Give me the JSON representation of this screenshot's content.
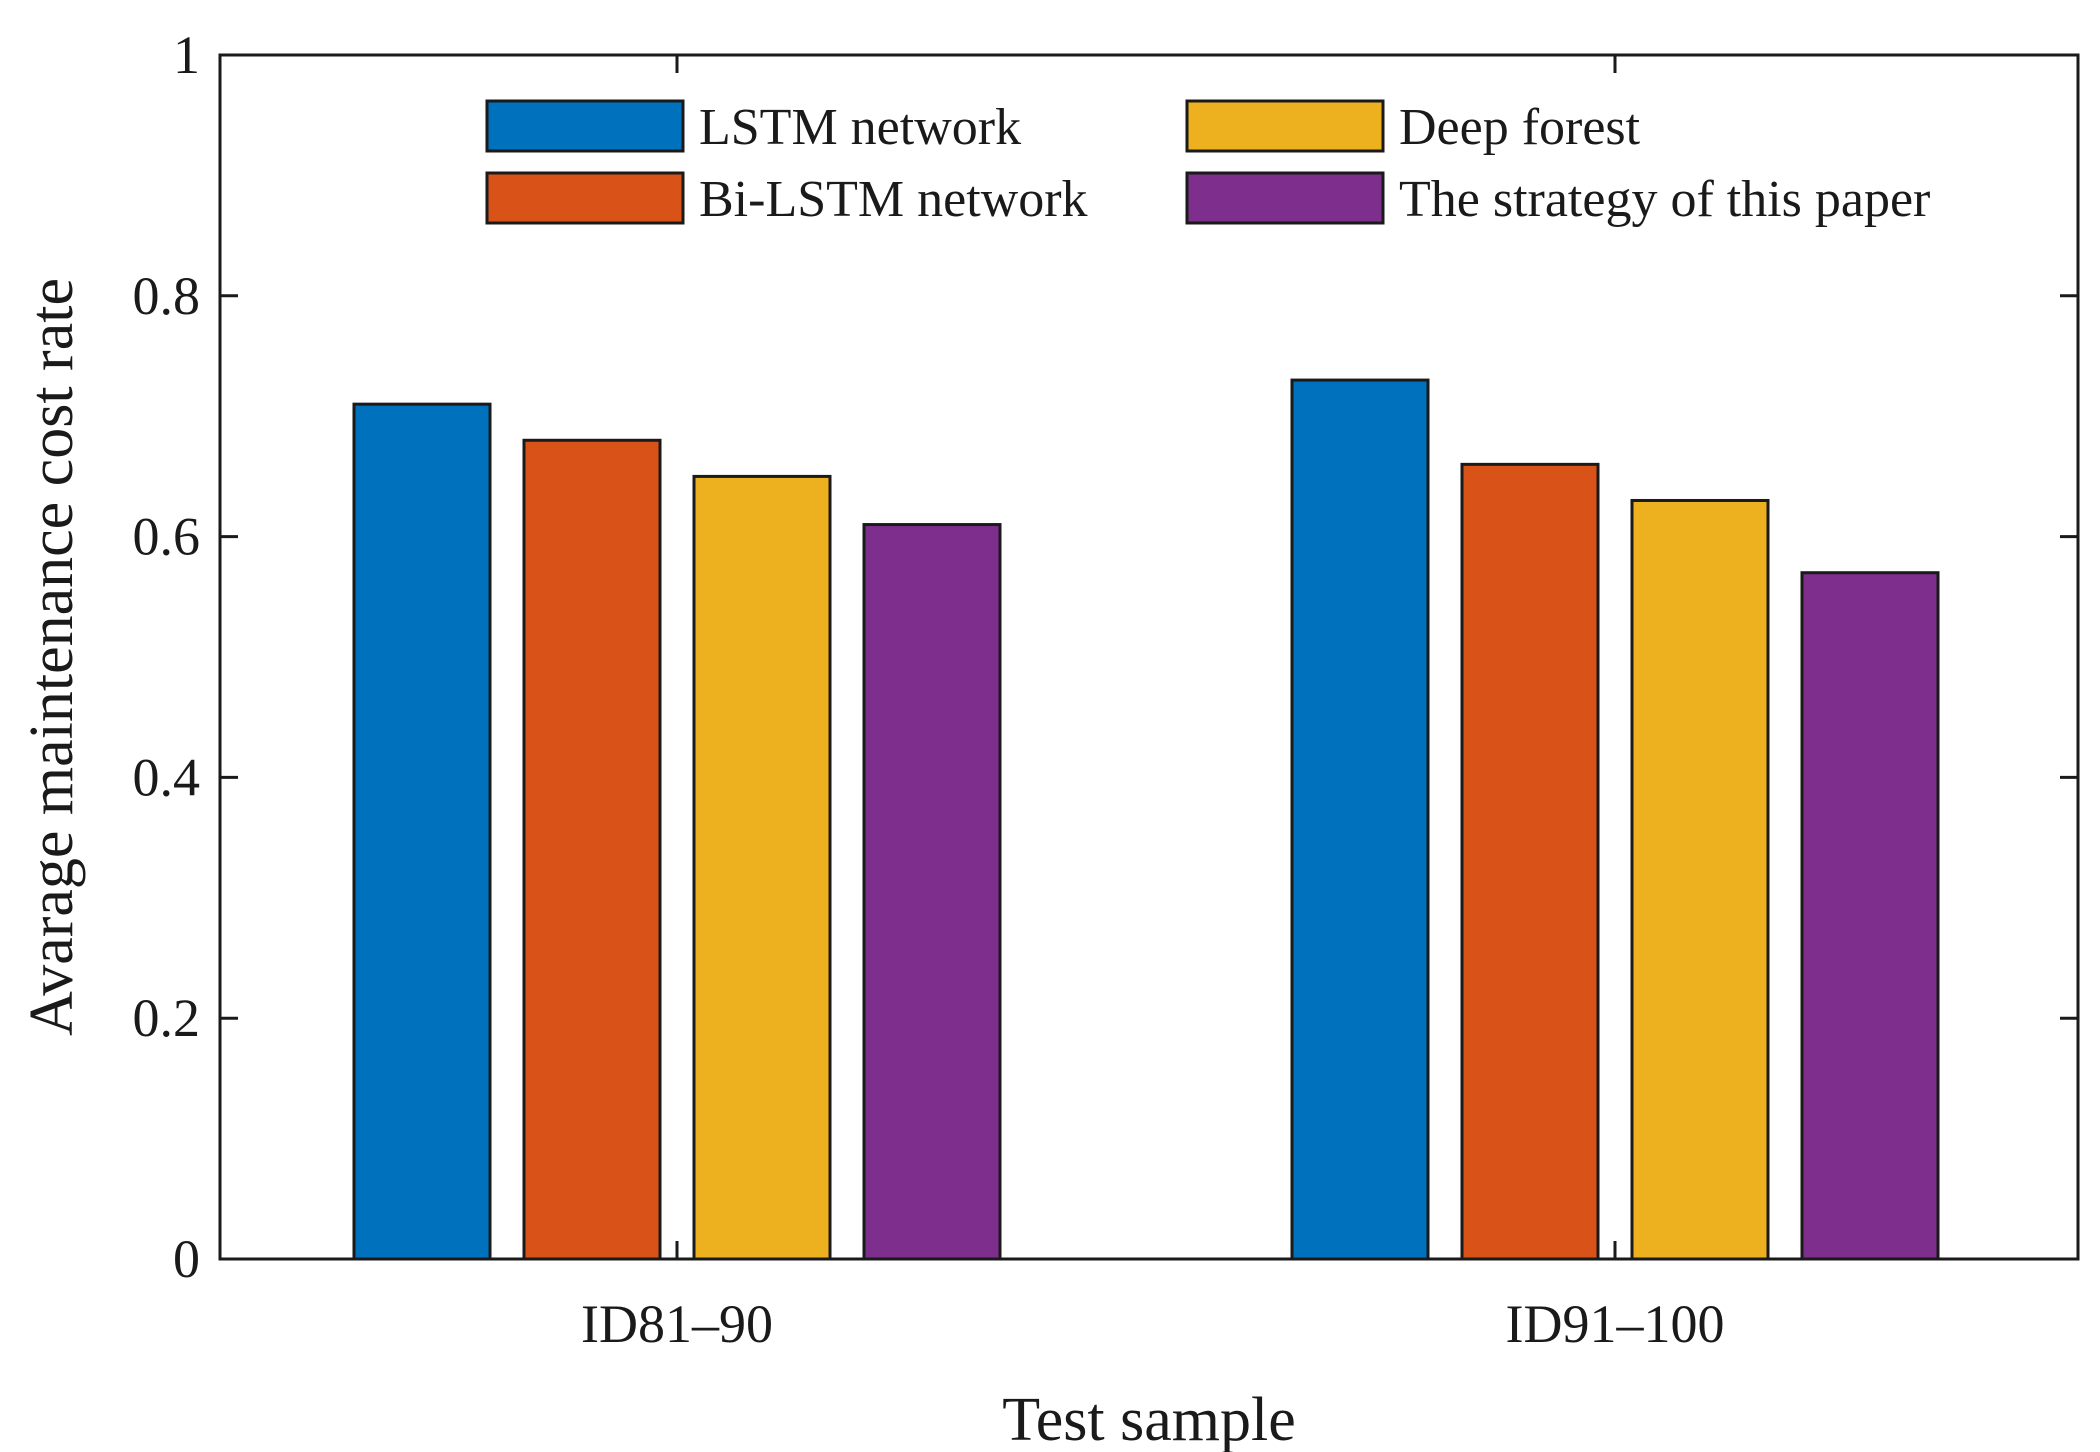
{
  "chart_data": {
    "type": "bar",
    "title": "",
    "xlabel": "Test sample",
    "ylabel": "Avarage maintenance cost rate",
    "categories": [
      "ID81–90",
      "ID91–100"
    ],
    "ylim": [
      0,
      1
    ],
    "yticks": [
      0,
      0.2,
      0.4,
      0.6,
      0.8,
      1
    ],
    "ytick_labels": [
      "0",
      "0.2",
      "0.4",
      "0.6",
      "0.8",
      "1"
    ],
    "grid": false,
    "legend_position": "top",
    "series": [
      {
        "name": "LSTM network",
        "color": "#0072BD",
        "values": [
          0.71,
          0.73
        ]
      },
      {
        "name": "Bi-LSTM network",
        "color": "#D95319",
        "values": [
          0.68,
          0.66
        ]
      },
      {
        "name": "Deep forest",
        "color": "#EDB120",
        "values": [
          0.65,
          0.63
        ]
      },
      {
        "name": "The strategy of this paper",
        "color": "#7E2F8E",
        "values": [
          0.61,
          0.57
        ]
      }
    ]
  }
}
